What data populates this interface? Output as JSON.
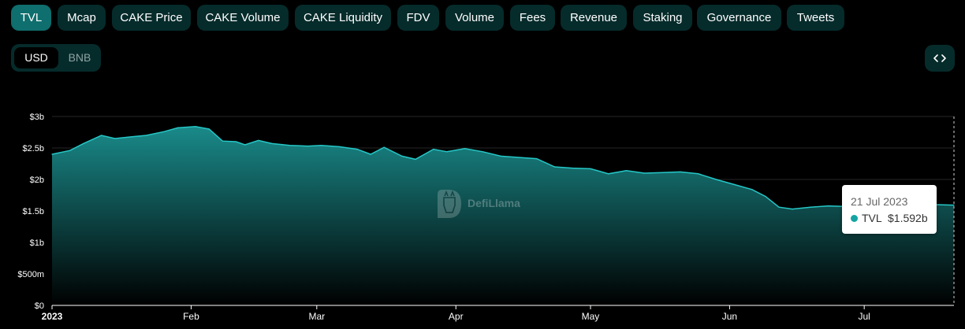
{
  "tabs": [
    {
      "label": "TVL",
      "active": true
    },
    {
      "label": "Mcap",
      "active": false
    },
    {
      "label": "CAKE Price",
      "active": false
    },
    {
      "label": "CAKE Volume",
      "active": false
    },
    {
      "label": "CAKE Liquidity",
      "active": false
    },
    {
      "label": "FDV",
      "active": false
    },
    {
      "label": "Volume",
      "active": false
    },
    {
      "label": "Fees",
      "active": false
    },
    {
      "label": "Revenue",
      "active": false
    },
    {
      "label": "Staking",
      "active": false
    },
    {
      "label": "Governance",
      "active": false
    },
    {
      "label": "Tweets",
      "active": false
    }
  ],
  "currency_toggle": {
    "options": [
      "USD",
      "BNB"
    ],
    "selected": "USD"
  },
  "embed_button": {
    "icon": "code-brackets-icon"
  },
  "watermark": {
    "text": "DefiLlama",
    "icon": "llama-logo-icon"
  },
  "tooltip": {
    "date": "21 Jul 2023",
    "series": "TVL",
    "value": "$1.592b"
  },
  "colors": {
    "background": "#000000",
    "tab_bg": "#062b2b",
    "tab_active_bg": "#0f6e6e",
    "line": "#25c7c7",
    "area_top": "#1a8a8a",
    "tooltip_dot": "#14a3a3"
  },
  "chart_data": {
    "type": "area",
    "title": "",
    "xlabel": "",
    "ylabel": "",
    "ylim": [
      0,
      3000000000
    ],
    "xlim": [
      "2023-01-01",
      "2023-07-21"
    ],
    "y_ticks": [
      {
        "value": 0,
        "label": "$0"
      },
      {
        "value": 500000000,
        "label": "$500m"
      },
      {
        "value": 1000000000,
        "label": "$1b"
      },
      {
        "value": 1500000000,
        "label": "$1.5b"
      },
      {
        "value": 2000000000,
        "label": "$2b"
      },
      {
        "value": 2500000000,
        "label": "$2.5b"
      },
      {
        "value": 3000000000,
        "label": "$3b"
      }
    ],
    "x_ticks": [
      {
        "value": "2023-01-01",
        "label": "2023",
        "bold": true
      },
      {
        "value": "2023-02-01",
        "label": "Feb",
        "bold": false
      },
      {
        "value": "2023-03-01",
        "label": "Mar",
        "bold": false
      },
      {
        "value": "2023-04-01",
        "label": "Apr",
        "bold": false
      },
      {
        "value": "2023-05-01",
        "label": "May",
        "bold": false
      },
      {
        "value": "2023-06-01",
        "label": "Jun",
        "bold": false
      },
      {
        "value": "2023-07-01",
        "label": "Jul",
        "bold": false
      }
    ],
    "grid": true,
    "legend": "none",
    "series": [
      {
        "x": [
          "2023-01-01",
          "2023-01-05",
          "2023-01-08",
          "2023-01-12",
          "2023-01-15",
          "2023-01-19",
          "2023-01-22",
          "2023-01-26",
          "2023-01-29",
          "2023-02-02",
          "2023-02-05",
          "2023-02-08",
          "2023-02-11",
          "2023-02-13",
          "2023-02-16",
          "2023-02-19",
          "2023-02-23",
          "2023-02-27",
          "2023-03-02",
          "2023-03-06",
          "2023-03-10",
          "2023-03-13",
          "2023-03-16",
          "2023-03-20",
          "2023-03-23",
          "2023-03-27",
          "2023-03-30",
          "2023-04-03",
          "2023-04-07",
          "2023-04-11",
          "2023-04-15",
          "2023-04-19",
          "2023-04-23",
          "2023-04-27",
          "2023-05-01",
          "2023-05-05",
          "2023-05-09",
          "2023-05-13",
          "2023-05-17",
          "2023-05-21",
          "2023-05-25",
          "2023-05-29",
          "2023-06-02",
          "2023-06-06",
          "2023-06-09",
          "2023-06-12",
          "2023-06-15",
          "2023-06-19",
          "2023-06-23",
          "2023-06-27",
          "2023-07-01",
          "2023-07-05",
          "2023-07-09",
          "2023-07-13",
          "2023-07-17",
          "2023-07-21"
        ],
        "values": [
          2400000000,
          2460000000,
          2570000000,
          2700000000,
          2650000000,
          2680000000,
          2700000000,
          2760000000,
          2820000000,
          2840000000,
          2800000000,
          2610000000,
          2600000000,
          2550000000,
          2620000000,
          2570000000,
          2540000000,
          2530000000,
          2540000000,
          2520000000,
          2480000000,
          2400000000,
          2510000000,
          2370000000,
          2320000000,
          2480000000,
          2440000000,
          2490000000,
          2440000000,
          2370000000,
          2350000000,
          2330000000,
          2200000000,
          2180000000,
          2170000000,
          2090000000,
          2140000000,
          2100000000,
          2110000000,
          2120000000,
          2090000000,
          2000000000,
          1920000000,
          1840000000,
          1730000000,
          1560000000,
          1530000000,
          1560000000,
          1580000000,
          1570000000,
          1580000000,
          1590000000,
          1600000000,
          1600000000,
          1600000000,
          1592000000
        ]
      }
    ]
  }
}
